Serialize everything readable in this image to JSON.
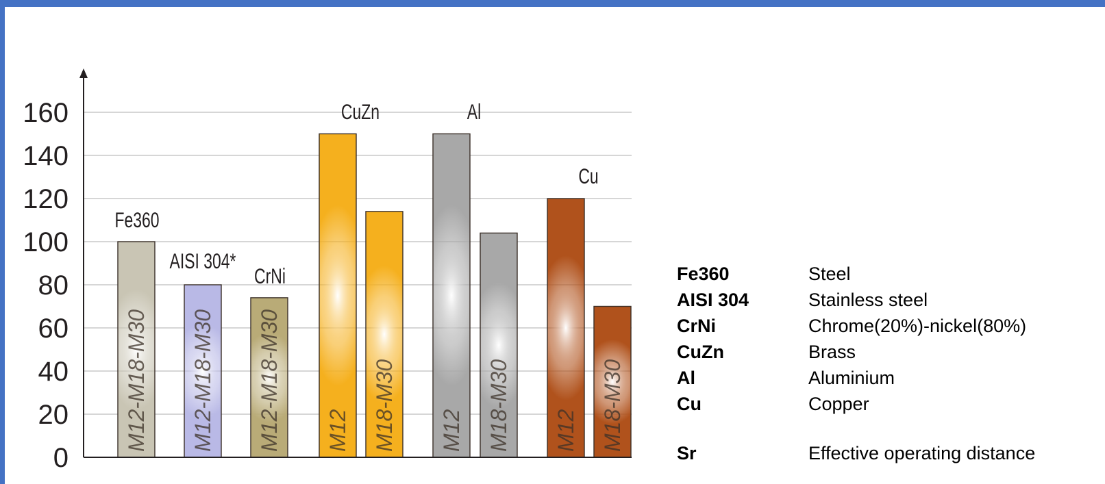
{
  "chart_data": {
    "type": "bar",
    "ylim": [
      0,
      160
    ],
    "yticks": [
      "0",
      "20",
      "40",
      "60",
      "80",
      "100",
      "120",
      "140",
      "160"
    ],
    "grid": true,
    "groups": [
      {
        "label": "Fe360",
        "bars": [
          {
            "label": "M12-M18-M30",
            "value": 100,
            "color": "#c9c5b4"
          }
        ]
      },
      {
        "label": "AISI 304*",
        "bars": [
          {
            "label": "M12-M18-M30",
            "value": 80,
            "color": "#b9b9e6"
          }
        ]
      },
      {
        "label": "CrNi",
        "bars": [
          {
            "label": "M12-M18-M30",
            "value": 74,
            "color": "#b9ab77"
          }
        ]
      },
      {
        "label": "CuZn",
        "bars": [
          {
            "label": "M12",
            "value": 150,
            "color": "#f5b01e"
          },
          {
            "label": "M18-M30",
            "value": 114,
            "color": "#f5b01e"
          }
        ]
      },
      {
        "label": "Al",
        "bars": [
          {
            "label": "M12",
            "value": 150,
            "color": "#a8a8a8"
          },
          {
            "label": "M18-M30",
            "value": 104,
            "color": "#a8a8a8"
          }
        ]
      },
      {
        "label": "Cu",
        "bars": [
          {
            "label": "M12",
            "value": 120,
            "color": "#b0521c"
          },
          {
            "label": "M18-M30",
            "value": 70,
            "color": "#b0521c"
          }
        ]
      }
    ]
  },
  "legend": [
    {
      "code": "Fe360",
      "desc": "Steel"
    },
    {
      "code": "AISI 304",
      "desc": "Stainless steel"
    },
    {
      "code": "CrNi",
      "desc": "Chrome(20%)-nickel(80%)"
    },
    {
      "code": "CuZn",
      "desc": "Brass"
    },
    {
      "code": "Al",
      "desc": "Aluminium"
    },
    {
      "code": "Cu",
      "desc": "Copper"
    },
    {
      "code": "Sr",
      "desc": "Effective operating distance"
    }
  ]
}
